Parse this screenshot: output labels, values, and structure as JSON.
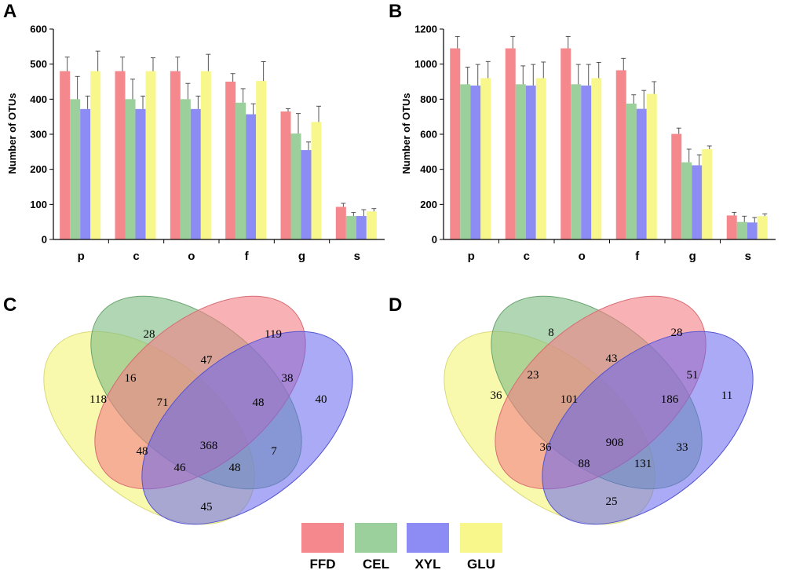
{
  "colors": {
    "FFD": "#f4888c",
    "CEL": "#9bcf9b",
    "XYL": "#8c8cf4",
    "GLU": "#f7f78c"
  },
  "chart_data": [
    {
      "panel": "A",
      "type": "bar",
      "ylabel": "Number of OTUs",
      "ylim": [
        0,
        600
      ],
      "yticks": [
        "0",
        "100",
        "200",
        "300",
        "400",
        "500",
        "600"
      ],
      "yticks_values": [
        0,
        100,
        200,
        300,
        400,
        500,
        600
      ],
      "categories": [
        "p",
        "c",
        "o",
        "f",
        "g",
        "s"
      ],
      "series": [
        {
          "name": "FFD",
          "values": [
            480,
            480,
            480,
            450,
            365,
            93
          ],
          "errors": [
            40,
            40,
            40,
            23,
            8,
            10
          ]
        },
        {
          "name": "CEL",
          "values": [
            400,
            400,
            400,
            390,
            302,
            67
          ],
          "errors": [
            65,
            57,
            45,
            40,
            57,
            10
          ]
        },
        {
          "name": "XYL",
          "values": [
            372,
            372,
            372,
            357,
            255,
            67
          ],
          "errors": [
            37,
            37,
            37,
            30,
            23,
            18
          ]
        },
        {
          "name": "GLU",
          "values": [
            480,
            480,
            480,
            452,
            335,
            80
          ],
          "errors": [
            57,
            38,
            48,
            55,
            45,
            8
          ]
        }
      ]
    },
    {
      "panel": "B",
      "type": "bar",
      "ylabel": "Number of OTUs",
      "ylim": [
        0,
        1200
      ],
      "yticks": [
        "0",
        "200",
        "400",
        "600",
        "800",
        "1000",
        "1200"
      ],
      "yticks_values": [
        0,
        200,
        400,
        600,
        800,
        1000,
        1200
      ],
      "categories": [
        "p",
        "c",
        "o",
        "f",
        "g",
        "s"
      ],
      "series": [
        {
          "name": "FFD",
          "values": [
            1090,
            1090,
            1090,
            965,
            602,
            137
          ],
          "errors": [
            68,
            68,
            68,
            68,
            33,
            18
          ]
        },
        {
          "name": "CEL",
          "values": [
            885,
            885,
            885,
            775,
            440,
            100
          ],
          "errors": [
            98,
            105,
            113,
            50,
            75,
            33
          ]
        },
        {
          "name": "XYL",
          "values": [
            878,
            878,
            878,
            745,
            423,
            97
          ],
          "errors": [
            120,
            120,
            120,
            105,
            60,
            28
          ]
        },
        {
          "name": "GLU",
          "values": [
            920,
            920,
            920,
            830,
            515,
            133
          ],
          "errors": [
            95,
            92,
            90,
            70,
            18,
            13
          ]
        }
      ]
    },
    {
      "panel": "C",
      "type": "venn",
      "sets": [
        "FFD",
        "CEL",
        "XYL",
        "GLU"
      ],
      "regions": [
        {
          "sets": "CEL",
          "value": "28"
        },
        {
          "sets": "FFD",
          "value": "119"
        },
        {
          "sets": "CEL+FFD",
          "value": "47"
        },
        {
          "sets": "GLU+CEL",
          "value": "16"
        },
        {
          "sets": "FFD+XYL",
          "value": "38"
        },
        {
          "sets": "GLU",
          "value": "118"
        },
        {
          "sets": "GLU+CEL+FFD",
          "value": "71"
        },
        {
          "sets": "CEL+FFD+XYL",
          "value": "48"
        },
        {
          "sets": "XYL",
          "value": "40"
        },
        {
          "sets": "GLU+FFD",
          "value": "48"
        },
        {
          "sets": "ALL",
          "value": "368"
        },
        {
          "sets": "CEL+XYL",
          "value": "7"
        },
        {
          "sets": "GLU+FFD+XYL",
          "value": "46"
        },
        {
          "sets": "GLU+CEL+XYL",
          "value": "48"
        },
        {
          "sets": "GLU+XYL",
          "value": "45"
        }
      ]
    },
    {
      "panel": "D",
      "type": "venn",
      "sets": [
        "FFD",
        "CEL",
        "XYL",
        "GLU"
      ],
      "regions": [
        {
          "sets": "CEL",
          "value": "8"
        },
        {
          "sets": "FFD",
          "value": "28"
        },
        {
          "sets": "CEL+FFD",
          "value": "43"
        },
        {
          "sets": "GLU+CEL",
          "value": "23"
        },
        {
          "sets": "FFD+XYL",
          "value": "51"
        },
        {
          "sets": "GLU",
          "value": "36"
        },
        {
          "sets": "GLU+CEL+FFD",
          "value": "101"
        },
        {
          "sets": "CEL+FFD+XYL",
          "value": "186"
        },
        {
          "sets": "XYL",
          "value": "11"
        },
        {
          "sets": "GLU+FFD",
          "value": "36"
        },
        {
          "sets": "ALL",
          "value": "908"
        },
        {
          "sets": "CEL+XYL",
          "value": "33"
        },
        {
          "sets": "GLU+FFD+XYL",
          "value": "88"
        },
        {
          "sets": "GLU+CEL+XYL",
          "value": "131"
        },
        {
          "sets": "GLU+XYL",
          "value": "25"
        }
      ]
    }
  ],
  "legend": [
    {
      "label": "FFD",
      "color": "#f4888c"
    },
    {
      "label": "CEL",
      "color": "#9bcf9b"
    },
    {
      "label": "XYL",
      "color": "#8c8cf4"
    },
    {
      "label": "GLU",
      "color": "#f7f78c"
    }
  ]
}
